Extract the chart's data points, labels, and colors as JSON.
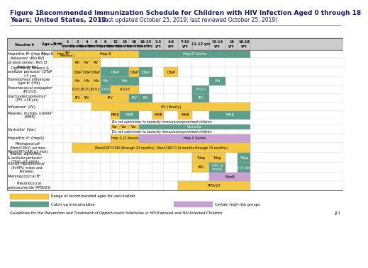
{
  "title_bold": "Figure 1. Recommended Immunization Schedule for Children with HIV Infection Aged 0 through 18",
  "title_bold2": "Years; United States, 2019",
  "title_normal": " (Last updated October 25, 2019; last reviewed October 25, 2019)",
  "yellow": "#F5C842",
  "green": "#5B9E8A",
  "purple": "#C8A0D4",
  "gray_header": "#CCCCCC",
  "white": "#FFFFFF",
  "border": "#AAAAAA",
  "text_dark": "#222222"
}
